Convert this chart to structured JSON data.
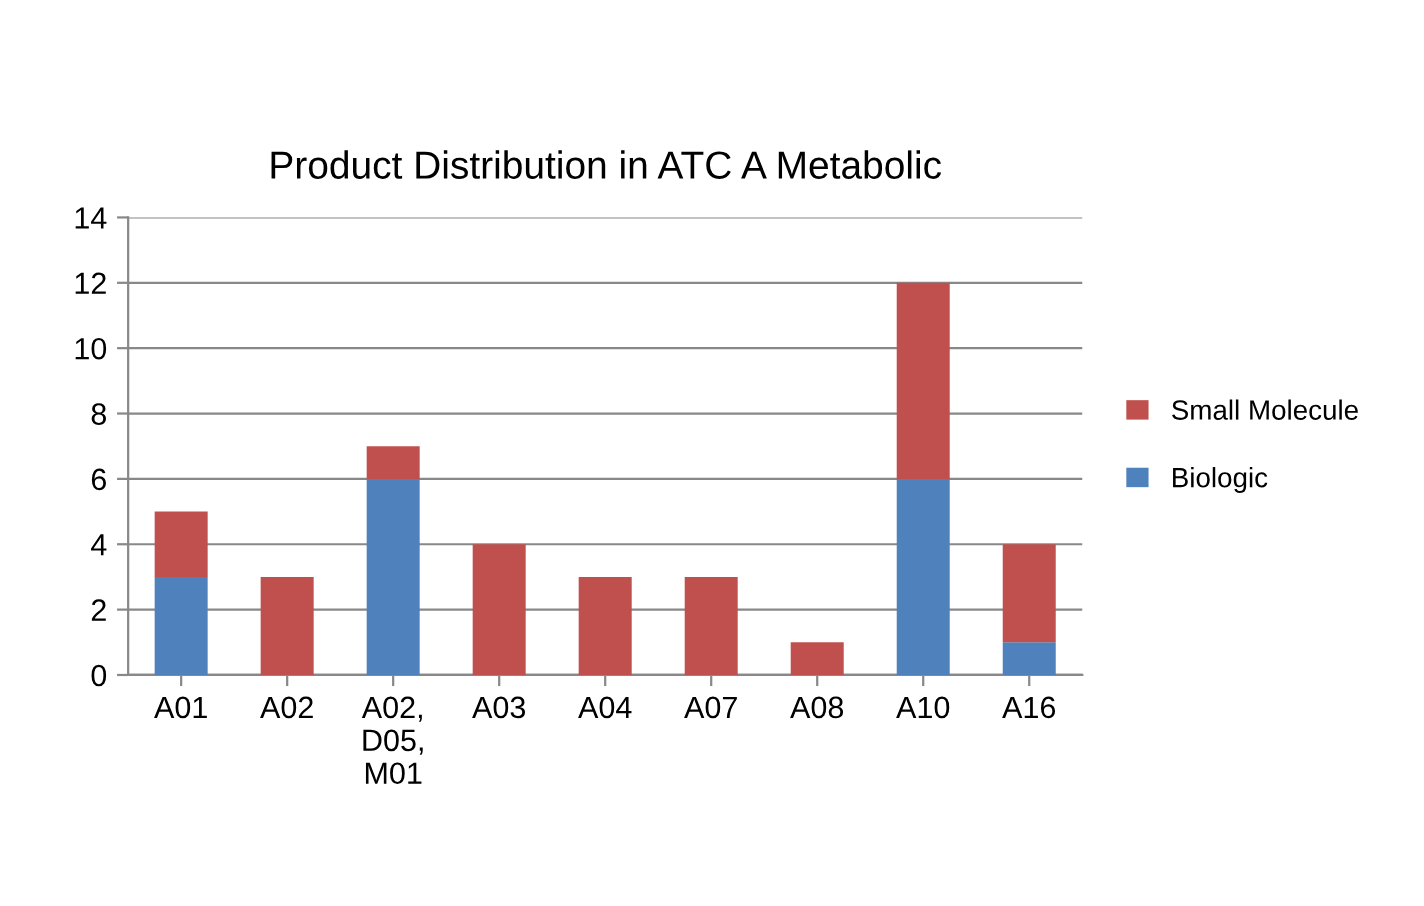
{
  "chart_data": {
    "type": "bar",
    "title": "Product Distribution in ATC A Metabolic",
    "categories": [
      "A01",
      "A02",
      "A02, D05, M01",
      "A03",
      "A04",
      "A07",
      "A08",
      "A10",
      "A16"
    ],
    "stacked": true,
    "series": [
      {
        "name": "Biologic",
        "color": "#4f81bd",
        "values": [
          3,
          0,
          6,
          0,
          0,
          0,
          0,
          6,
          1
        ]
      },
      {
        "name": "Small Molecule",
        "color": "#c0504d",
        "values": [
          2,
          3,
          1,
          4,
          3,
          3,
          1,
          6,
          3
        ]
      }
    ],
    "ylim": [
      0,
      14
    ],
    "yticks": [
      0,
      2,
      4,
      6,
      8,
      10,
      12,
      14
    ],
    "grid": "y",
    "legend": "right"
  }
}
